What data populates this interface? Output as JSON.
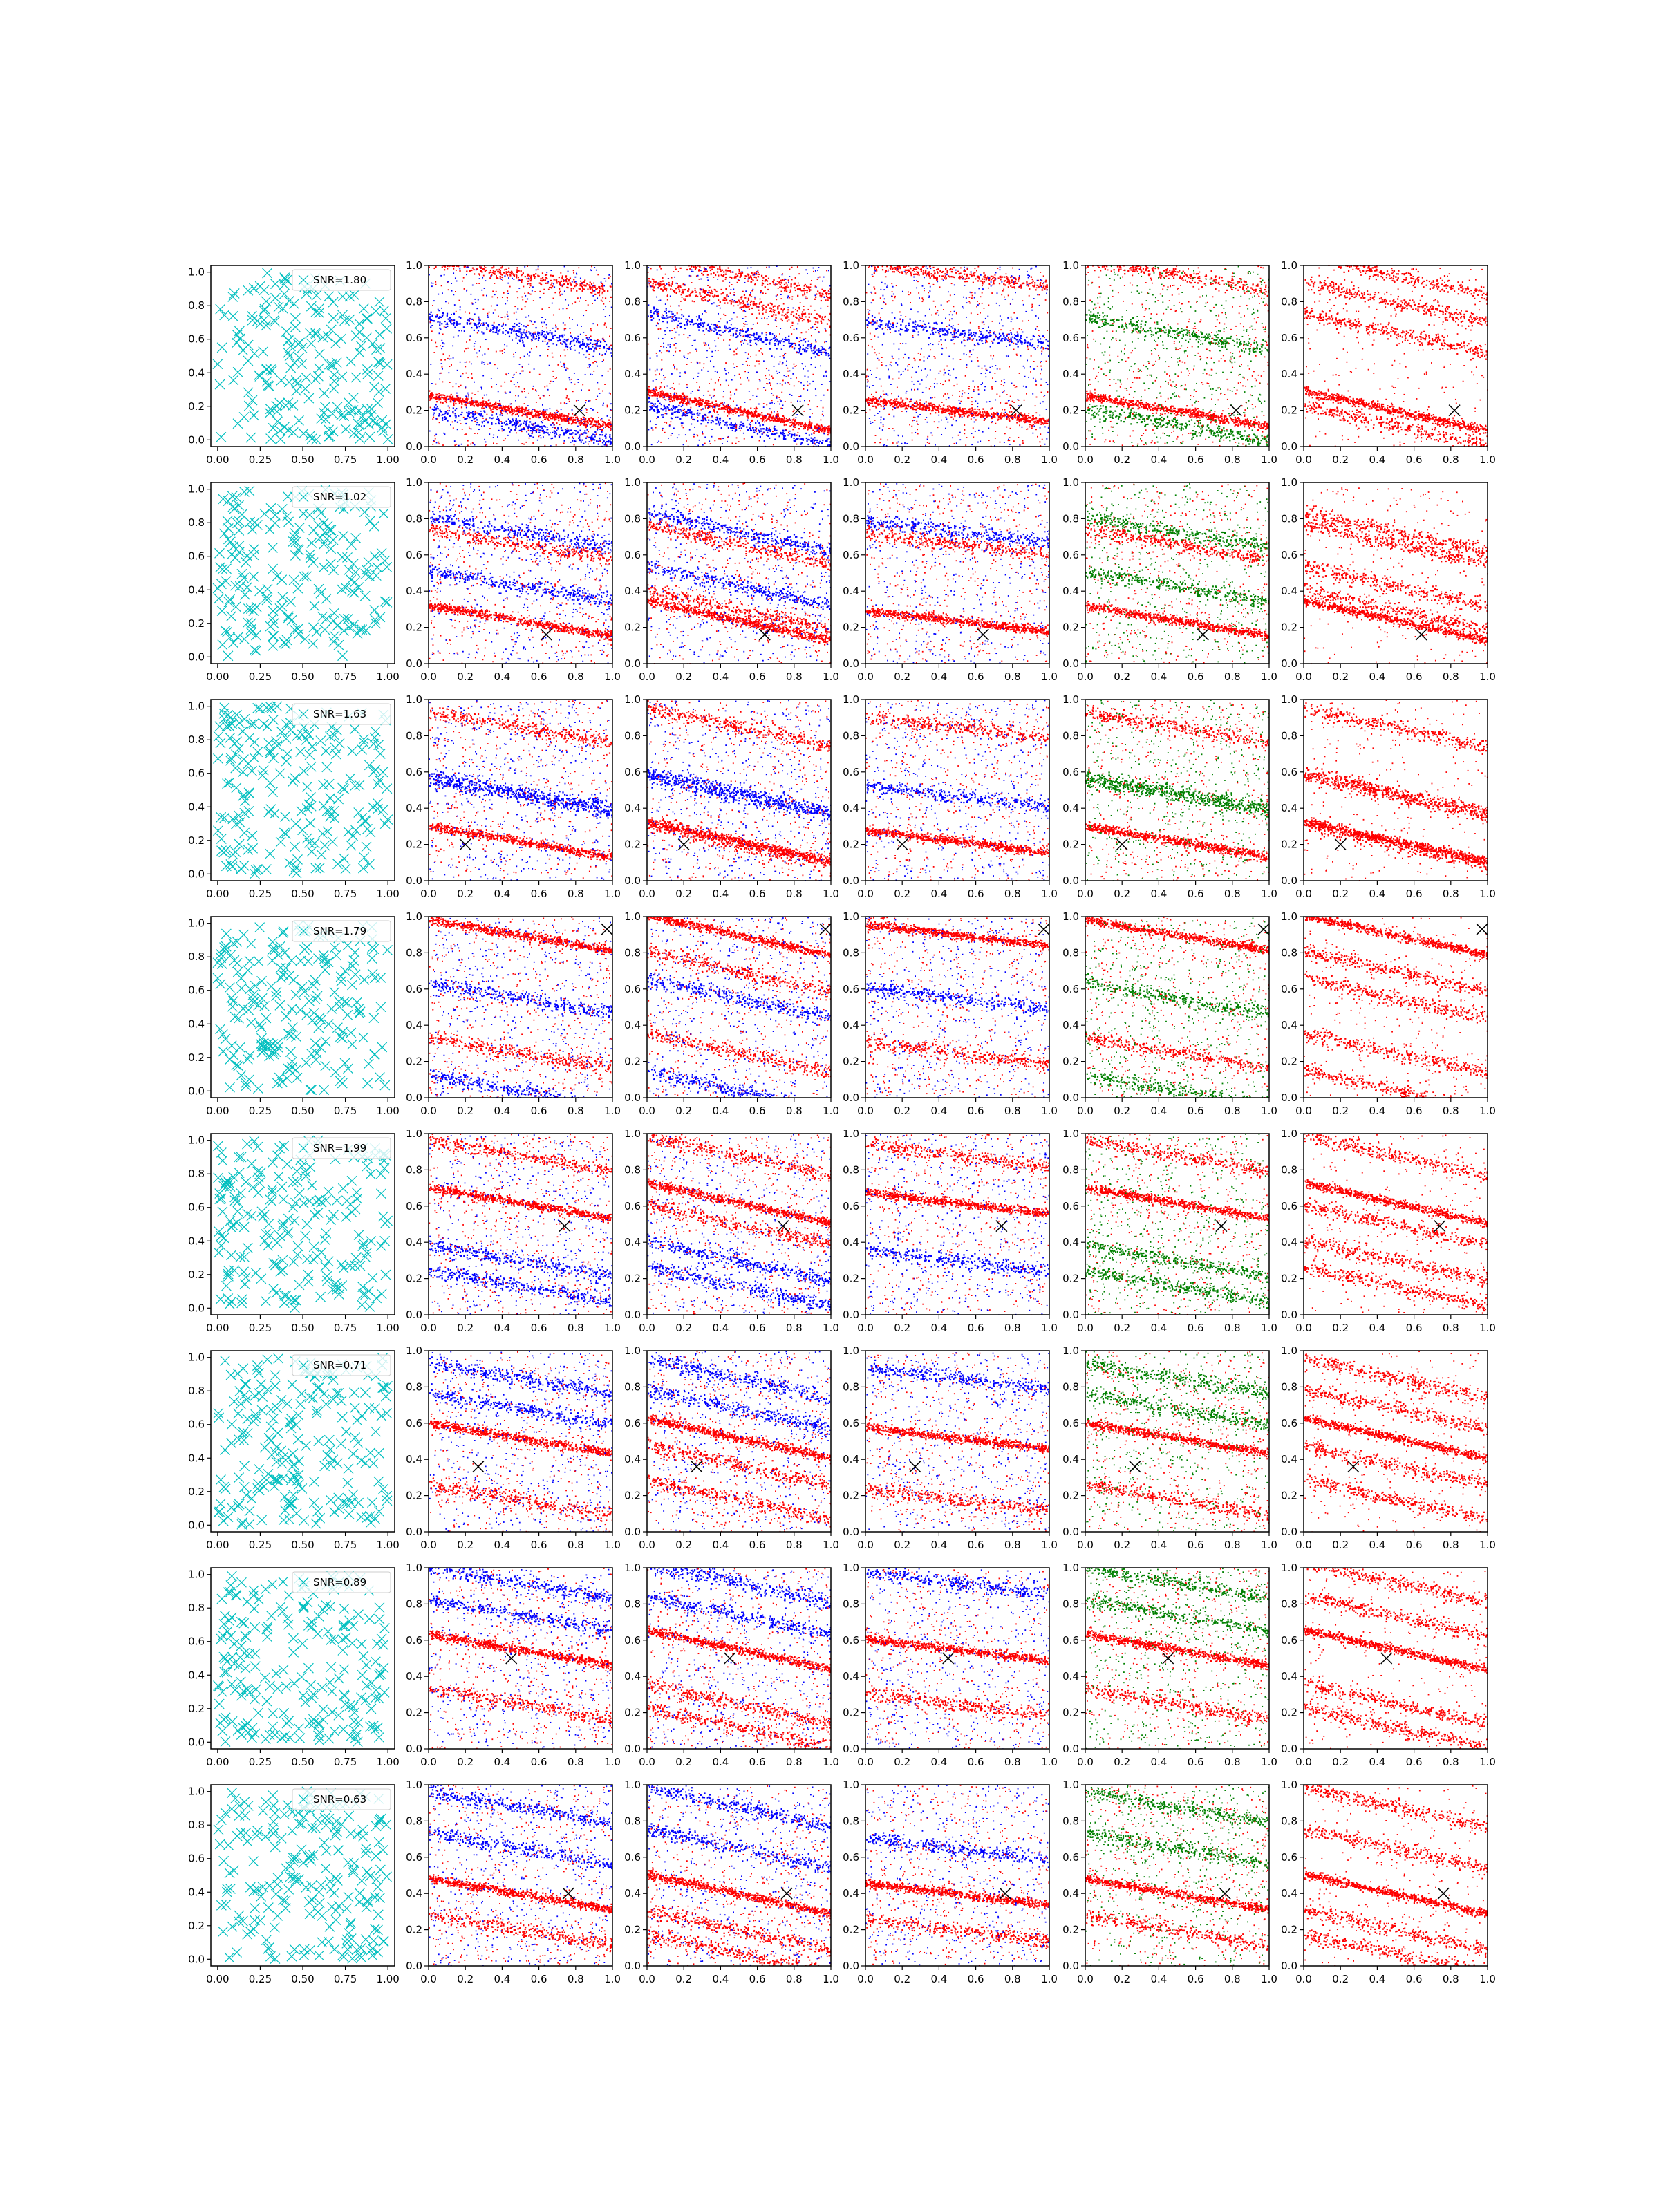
{
  "figure": {
    "rows": 8,
    "cols": 6,
    "colors": {
      "cross": "#00bfbf",
      "red": "#ff0000",
      "blue": "#0000ff",
      "green": "#008000",
      "target": "#000000",
      "axis": "#000000"
    }
  },
  "chart_data": {
    "type": "scatter",
    "ticks_left": [
      "0.00",
      "0.25",
      "0.50",
      "0.75",
      "1.00"
    ],
    "ticks_other": [
      "0.0",
      "0.2",
      "0.4",
      "0.6",
      "0.8",
      "1.0"
    ],
    "ticks_y_left": [
      "0.0",
      "0.2",
      "0.4",
      "0.6",
      "0.8",
      "1.0"
    ],
    "ticks_y_other": [
      "0.0",
      "0.2",
      "0.4",
      "0.6",
      "0.8",
      "1.0"
    ],
    "left_xlim": [
      -0.04,
      1.04
    ],
    "left_ylim": [
      -0.04,
      1.04
    ],
    "other_xlim": [
      0,
      1
    ],
    "other_ylim": [
      0,
      1
    ],
    "panel_color_schemes": [
      "cross",
      "red-blue",
      "red-blue",
      "red-blue",
      "red-green",
      "red"
    ],
    "rows": [
      {
        "snr_label": "SNR=1.80",
        "target": [
          0.82,
          0.2
        ],
        "bands": [
          [
            0.2,
            0.2
          ],
          [
            0.63,
            0.2
          ],
          [
            0.95,
            0.2
          ],
          [
            0.12,
            0.2
          ],
          [
            0.8,
            0.2
          ]
        ]
      },
      {
        "snr_label": "SNR=1.02",
        "target": [
          0.64,
          0.16
        ],
        "bands": [
          [
            0.24,
            0.3
          ],
          [
            0.73,
            0.3
          ],
          [
            0.66,
            0.3
          ],
          [
            0.43,
            0.3
          ],
          [
            0.3,
            0.3
          ]
        ]
      },
      {
        "snr_label": "SNR=1.63",
        "target": [
          0.2,
          0.2
        ],
        "bands": [
          [
            0.22,
            0.3
          ],
          [
            0.47,
            0.3
          ],
          [
            0.85,
            0.3
          ],
          [
            0.49,
            0.3
          ],
          [
            0.2,
            0.3
          ]
        ]
      },
      {
        "snr_label": "SNR=1.79",
        "target": [
          0.97,
          0.93
        ],
        "bands": [
          [
            0.9,
            0.3
          ],
          [
            0.55,
            0.3
          ],
          [
            0.25,
            0.3
          ],
          [
            0.04,
            0.3
          ],
          [
            0.7,
            0.3
          ]
        ]
      },
      {
        "snr_label": "SNR=1.99",
        "target": [
          0.74,
          0.49
        ],
        "bands": [
          [
            0.62,
            0.3
          ],
          [
            0.3,
            0.3
          ],
          [
            0.88,
            0.3
          ],
          [
            0.16,
            0.3
          ],
          [
            0.5,
            0.3
          ]
        ]
      },
      {
        "snr_label": "SNR=0.71",
        "target": [
          0.27,
          0.36
        ],
        "bands": [
          [
            0.52,
            0.3
          ],
          [
            0.85,
            0.3
          ],
          [
            0.18,
            0.3
          ],
          [
            0.68,
            0.3
          ],
          [
            0.37,
            0.3
          ]
        ]
      },
      {
        "snr_label": "SNR=0.89",
        "target": [
          0.45,
          0.5
        ],
        "bands": [
          [
            0.55,
            0.3
          ],
          [
            0.92,
            0.3
          ],
          [
            0.25,
            0.3
          ],
          [
            0.74,
            0.3
          ],
          [
            0.12,
            0.3
          ]
        ]
      },
      {
        "snr_label": "SNR=0.63",
        "target": [
          0.76,
          0.4
        ],
        "bands": [
          [
            0.4,
            0.3
          ],
          [
            0.65,
            0.3
          ],
          [
            0.2,
            0.3
          ],
          [
            0.88,
            0.3
          ],
          [
            0.07,
            0.3
          ]
        ]
      }
    ]
  }
}
